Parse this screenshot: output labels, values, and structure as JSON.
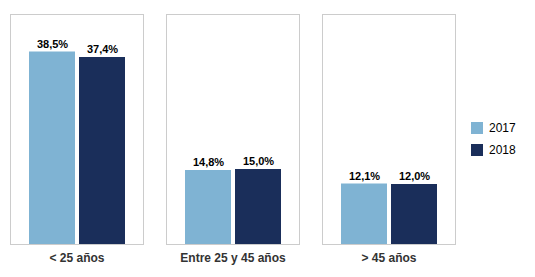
{
  "chart_data": {
    "type": "bar",
    "categories": [
      "< 25 años",
      "Entre 25 y 45 años",
      "> 45 años"
    ],
    "series": [
      {
        "name": "2017",
        "color": "#7FB3D3",
        "values": [
          38.5,
          14.8,
          12.1
        ],
        "value_labels": [
          "38,5%",
          "14,8%",
          "12,1%"
        ]
      },
      {
        "name": "2018",
        "color": "#1A2E5A",
        "values": [
          37.4,
          15.0,
          12.0
        ],
        "value_labels": [
          "37,4%",
          "15,0%",
          "12,0%"
        ]
      }
    ],
    "ylim": [
      0,
      46
    ],
    "grid": false,
    "legend": "right",
    "data_labels": true,
    "tick_labels": "x"
  }
}
